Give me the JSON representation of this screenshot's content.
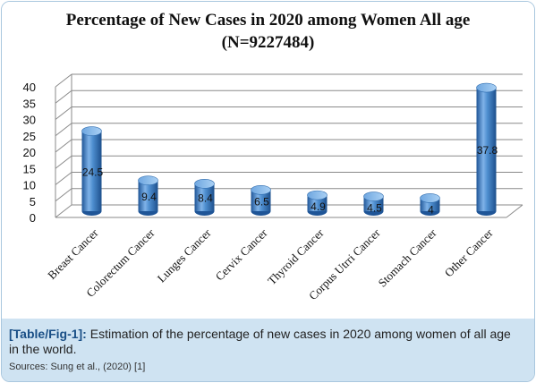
{
  "chart_data": {
    "type": "bar",
    "title": "Percentage of New Cases in 2020 among Women All age",
    "subtitle": "(N=9227484)",
    "categories": [
      "Breast Cancer",
      "Colorectum Cancer",
      "Lunges Cancer",
      "Cervix Cancer",
      "Thyroid Cancer",
      "Corpus Utrri Cancer",
      "Stomach Cancer",
      "Other Cancer"
    ],
    "values": [
      24.5,
      9.4,
      8.4,
      6.5,
      4.9,
      4.5,
      4,
      37.8
    ],
    "value_labels": [
      "24.5",
      "9.4",
      "8.4",
      "6.5",
      "4.9",
      "4.5",
      "4",
      "37.8"
    ],
    "xlabel": "",
    "ylabel": "",
    "ylim": [
      0,
      40
    ],
    "yticks": [
      "0",
      "5",
      "10",
      "15",
      "20",
      "25",
      "30",
      "35",
      "40"
    ],
    "grid": true,
    "bar_shape": "cylinder-3d",
    "colors": {
      "bar": "#3f7fc4",
      "bar_light": "#8ec0ee",
      "bar_dark": "#1f5597",
      "grid": "#8a8a8a"
    }
  },
  "caption": {
    "label": "[Table/Fig-1]:",
    "text": " Estimation of the percentage of new cases in 2020 among women of all age in the world.",
    "source": "Sources: Sung et al., (2020) [1]",
    "background": "#cfe3f2",
    "label_color": "#1a4f86"
  }
}
